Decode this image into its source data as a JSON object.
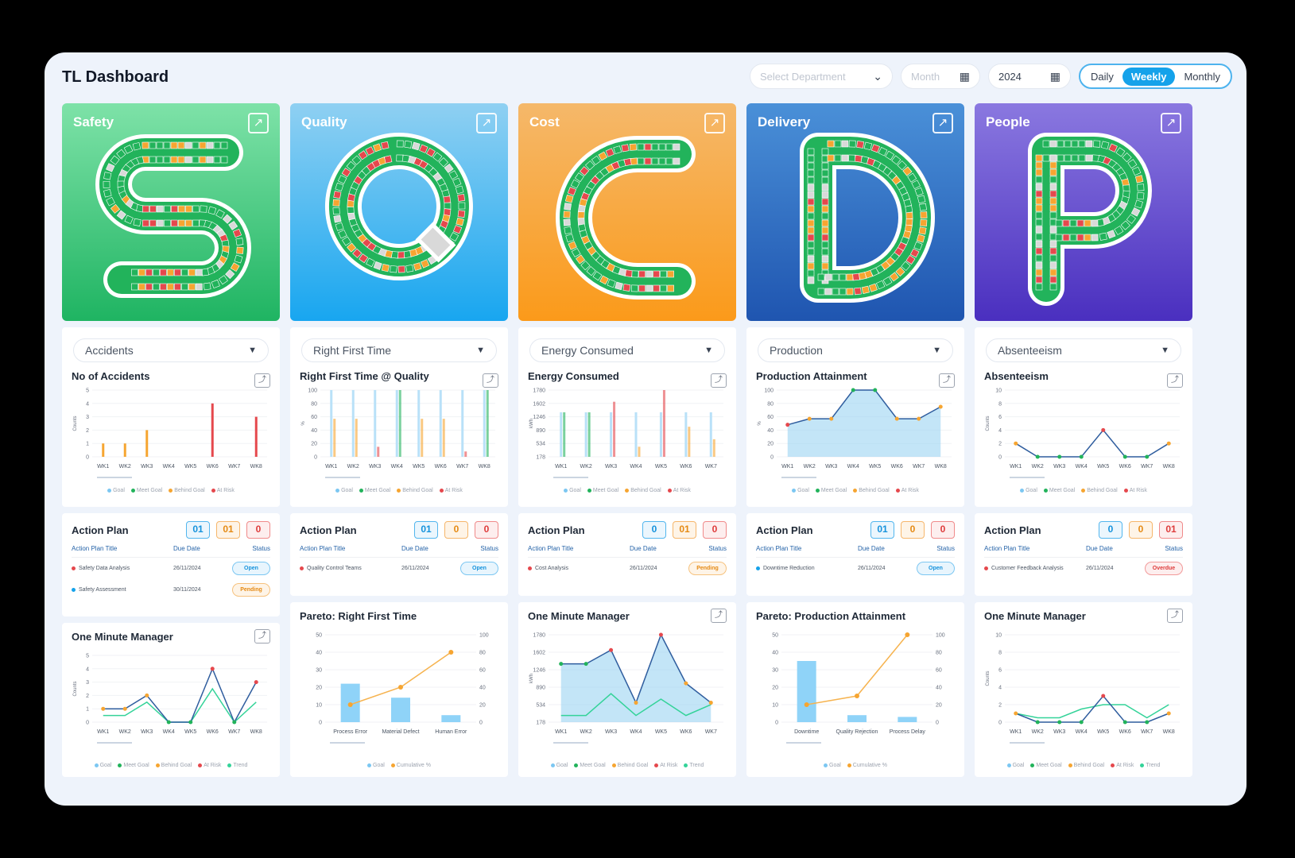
{
  "app": {
    "title": "TL Dashboard"
  },
  "filters": {
    "department_placeholder": "Select Department",
    "month_placeholder": "Month",
    "year_value": "2024",
    "period_options": [
      "Daily",
      "Weekly",
      "Monthly"
    ],
    "period_selected": "Weekly"
  },
  "colors": {
    "goal": "#7cc7f2",
    "meet_goal": "#22b35b",
    "behind_goal": "#f6a531",
    "at_risk": "#e5484d",
    "trend": "#34d399"
  },
  "legend": {
    "goal": "Goal",
    "meet_goal": "Meet Goal",
    "behind_goal": "Behind Goal",
    "at_risk": "At Risk",
    "trend": "Trend",
    "cumulative": "Cumulative %"
  },
  "weeks": [
    "WK1",
    "WK2",
    "WK3",
    "WK4",
    "WK5",
    "WK6",
    "WK7",
    "WK8"
  ],
  "columns": [
    {
      "key": "safety",
      "letter": "S",
      "title": "Safety",
      "metric_select": "Accidents",
      "chart_title": "No of Accidents",
      "ylabel": "Counts",
      "action_counts": [
        "01",
        "01",
        "0"
      ],
      "bottom_title": "One Minute Manager"
    },
    {
      "key": "quality",
      "letter": "Q",
      "title": "Quality",
      "metric_select": "Right First Time",
      "chart_title": "Right First Time @ Quality",
      "ylabel": "%",
      "action_counts": [
        "01",
        "0",
        "0"
      ],
      "bottom_title": "Pareto: Right First Time"
    },
    {
      "key": "cost",
      "letter": "C",
      "title": "Cost",
      "metric_select": "Energy Consumed",
      "chart_title": "Energy Consumed",
      "ylabel": "kWh",
      "action_counts": [
        "0",
        "01",
        "0"
      ],
      "bottom_title": "One Minute Manager"
    },
    {
      "key": "delivery",
      "letter": "D",
      "title": "Delivery",
      "metric_select": "Production",
      "chart_title": "Production Attainment",
      "ylabel": "%",
      "action_counts": [
        "01",
        "0",
        "0"
      ],
      "bottom_title": "Pareto: Production Attainment"
    },
    {
      "key": "people",
      "letter": "P",
      "title": "People",
      "metric_select": "Absenteeism",
      "chart_title": "Absenteeism",
      "ylabel": "Counts",
      "action_counts": [
        "0",
        "0",
        "01"
      ],
      "bottom_title": "One Minute Manager"
    }
  ],
  "action_plan": {
    "title": "Action Plan",
    "headers": [
      "Action Plan Title",
      "Due Date",
      "Status"
    ],
    "rows": {
      "safety": [
        {
          "title": "Safety Data Analysis",
          "due": "26/11/2024",
          "status": "Open",
          "dot": "#e5484d"
        },
        {
          "title": "Safety Assessment",
          "due": "30/11/2024",
          "status": "Pending",
          "dot": "#15a2ea"
        }
      ],
      "quality": [
        {
          "title": "Quality Control Teams",
          "due": "26/11/2024",
          "status": "Open",
          "dot": "#e5484d"
        }
      ],
      "cost": [
        {
          "title": "Cost Analysis",
          "due": "26/11/2024",
          "status": "Pending",
          "dot": "#e5484d"
        }
      ],
      "delivery": [
        {
          "title": "Downtime Reduction",
          "due": "26/11/2024",
          "status": "Open",
          "dot": "#15a2ea"
        }
      ],
      "people": [
        {
          "title": "Customer Feedback Analysis",
          "due": "26/11/2024",
          "status": "Overdue",
          "dot": "#e5484d"
        }
      ]
    }
  },
  "chart_data": [
    {
      "id": "safety-top",
      "type": "bar",
      "title": "No of Accidents",
      "ylabel": "Counts",
      "categories": [
        "WK1",
        "WK2",
        "WK3",
        "WK4",
        "WK5",
        "WK6",
        "WK7",
        "WK8"
      ],
      "ylim": [
        0,
        5
      ],
      "yticks": [
        "0",
        "1",
        "2",
        "3",
        "4",
        "5"
      ],
      "values": [
        1,
        1,
        2,
        0,
        0,
        4,
        0,
        3
      ],
      "status": [
        "behind",
        "behind",
        "behind",
        "meet",
        "meet",
        "risk",
        "meet",
        "risk"
      ]
    },
    {
      "id": "quality-top",
      "type": "bar",
      "title": "Right First Time @ Quality",
      "ylabel": "%",
      "categories": [
        "WK1",
        "WK2",
        "WK3",
        "WK4",
        "WK5",
        "WK6",
        "WK7",
        "WK8"
      ],
      "ylim": [
        0,
        100
      ],
      "yticks": [
        "0",
        "20",
        "40",
        "60",
        "80",
        "100"
      ],
      "goal": [
        100,
        100,
        100,
        100,
        100,
        100,
        100,
        100
      ],
      "values": [
        57,
        57,
        15,
        100,
        57,
        57,
        8,
        100
      ],
      "status": [
        "behind",
        "behind",
        "risk",
        "meet",
        "behind",
        "behind",
        "risk",
        "meet"
      ]
    },
    {
      "id": "cost-top",
      "type": "bar",
      "title": "Energy Consumed",
      "ylabel": "kWh",
      "categories": [
        "WK1",
        "WK2",
        "WK3",
        "WK4",
        "WK5",
        "WK6",
        "WK7"
      ],
      "ylim": [
        178,
        1780
      ],
      "yticks": [
        "178",
        "534",
        "890",
        "1246",
        "1602",
        "1780"
      ],
      "goal": [
        1246,
        1246,
        1246,
        1246,
        1246,
        1246,
        1246
      ],
      "values": [
        1246,
        1246,
        1500,
        420,
        1780,
        900,
        600
      ],
      "status": [
        "meet",
        "meet",
        "risk",
        "behind",
        "risk",
        "behind",
        "behind"
      ]
    },
    {
      "id": "delivery-top",
      "type": "area",
      "title": "Production Attainment",
      "ylabel": "%",
      "categories": [
        "WK1",
        "WK2",
        "WK3",
        "WK4",
        "WK5",
        "WK6",
        "WK7",
        "WK8"
      ],
      "ylim": [
        0,
        100
      ],
      "yticks": [
        "0",
        "20",
        "40",
        "60",
        "80",
        "100"
      ],
      "values": [
        48,
        57,
        57,
        100,
        100,
        57,
        57,
        75
      ],
      "status": [
        "risk",
        "behind",
        "behind",
        "meet",
        "meet",
        "behind",
        "behind",
        "behind"
      ]
    },
    {
      "id": "people-top",
      "type": "line",
      "title": "Absenteeism",
      "ylabel": "Counts",
      "categories": [
        "WK1",
        "WK2",
        "WK3",
        "WK4",
        "WK5",
        "WK6",
        "WK7",
        "WK8"
      ],
      "ylim": [
        0,
        10
      ],
      "yticks": [
        "0",
        "2",
        "4",
        "6",
        "8",
        "10"
      ],
      "values": [
        2,
        0,
        0,
        0,
        4,
        0,
        0,
        2
      ],
      "status": [
        "behind",
        "meet",
        "meet",
        "meet",
        "risk",
        "meet",
        "meet",
        "behind"
      ]
    },
    {
      "id": "safety-bottom",
      "type": "line",
      "title": "One Minute Manager",
      "ylabel": "Counts",
      "categories": [
        "WK1",
        "WK2",
        "WK3",
        "WK4",
        "WK5",
        "WK6",
        "WK7",
        "WK8"
      ],
      "ylim": [
        0,
        5
      ],
      "yticks": [
        "0",
        "1",
        "2",
        "3",
        "4",
        "5"
      ],
      "values": [
        1,
        1,
        2,
        0,
        0,
        4,
        0,
        3
      ],
      "trend": [
        0.5,
        0.5,
        1.5,
        0,
        0,
        2.5,
        0,
        1.5
      ],
      "status": [
        "behind",
        "behind",
        "behind",
        "meet",
        "meet",
        "risk",
        "meet",
        "risk"
      ]
    },
    {
      "id": "quality-bottom",
      "type": "pareto",
      "title": "Pareto: Right First Time",
      "categories": [
        "Process Error",
        "Material Defect",
        "Human Error"
      ],
      "values": [
        22,
        14,
        4
      ],
      "cumulative": [
        20,
        40,
        80
      ],
      "ylim": [
        0,
        50
      ],
      "yticks": [
        "0",
        "10",
        "20",
        "30",
        "40",
        "50"
      ],
      "y2ticks": [
        "0",
        "20",
        "40",
        "60",
        "80",
        "100"
      ]
    },
    {
      "id": "cost-bottom",
      "type": "area",
      "title": "One Minute Manager",
      "ylabel": "kWh",
      "categories": [
        "WK1",
        "WK2",
        "WK3",
        "WK4",
        "WK5",
        "WK6",
        "WK7"
      ],
      "ylim": [
        178,
        1780
      ],
      "yticks": [
        "178",
        "534",
        "890",
        "1246",
        "1602",
        "1780"
      ],
      "values": [
        1246,
        1246,
        1500,
        534,
        1780,
        890,
        534
      ],
      "trend": [
        300,
        300,
        700,
        300,
        600,
        300,
        500
      ],
      "status": [
        "meet",
        "meet",
        "risk",
        "behind",
        "risk",
        "behind",
        "behind"
      ]
    },
    {
      "id": "delivery-bottom",
      "type": "pareto",
      "title": "Pareto: Production Attainment",
      "categories": [
        "Downtime",
        "Quality Rejection",
        "Process Delay"
      ],
      "values": [
        35,
        4,
        3
      ],
      "cumulative": [
        20,
        30,
        100
      ],
      "ylim": [
        0,
        50
      ],
      "yticks": [
        "0",
        "10",
        "20",
        "30",
        "40",
        "50"
      ],
      "y2ticks": [
        "0",
        "20",
        "40",
        "60",
        "80",
        "100"
      ]
    },
    {
      "id": "people-bottom",
      "type": "line",
      "title": "One Minute Manager",
      "ylabel": "Counts",
      "categories": [
        "WK1",
        "WK2",
        "WK3",
        "WK4",
        "WK5",
        "WK6",
        "WK7",
        "WK8"
      ],
      "ylim": [
        0,
        10
      ],
      "yticks": [
        "0",
        "2",
        "4",
        "6",
        "8",
        "10"
      ],
      "values": [
        1,
        0,
        0,
        0,
        3,
        0,
        0,
        1
      ],
      "trend": [
        1,
        0.5,
        0.5,
        1.5,
        2,
        2,
        0.5,
        2
      ],
      "status": [
        "behind",
        "meet",
        "meet",
        "meet",
        "risk",
        "meet",
        "meet",
        "behind"
      ]
    }
  ]
}
